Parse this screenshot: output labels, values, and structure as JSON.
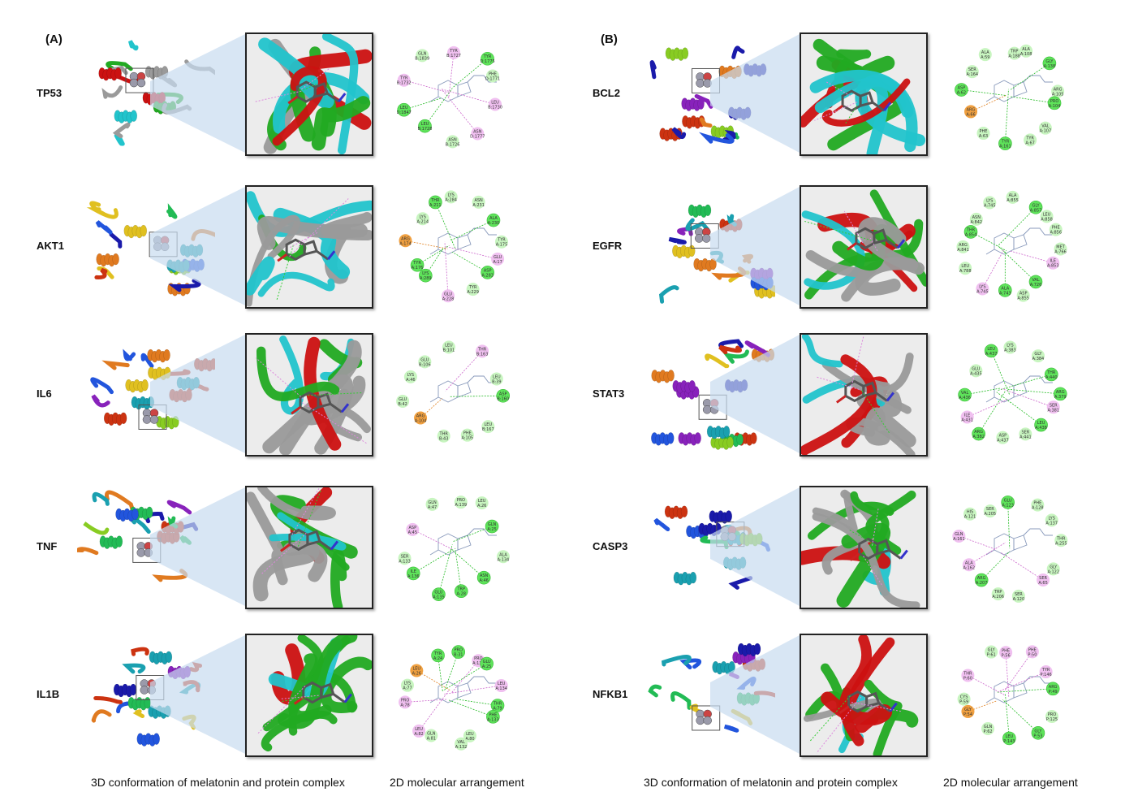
{
  "panels": [
    {
      "label": "(A)",
      "rows": [
        {
          "gene": "TP53",
          "residues": [
            "TYR B:1727",
            "TYR D:1775",
            "PHE D:1771",
            "LEU B:1730",
            "ASN D:1777",
            "ASN B:1726",
            "LEU B:1728",
            "LEU D:1847",
            "TYR B:1732",
            "GLN B:1839"
          ]
        },
        {
          "gene": "AKT1",
          "residues": [
            "LYS A:284",
            "ASN A:231",
            "ALA A:230",
            "TYR A:175",
            "GLU A:17",
            "ASP A:283",
            "TYR A:229",
            "GLU A:228",
            "LYS A:289",
            "TYR A:176",
            "ARG A:174",
            "LYS A:214",
            "THR A:211"
          ]
        },
        {
          "gene": "IL6",
          "residues": [
            "LEU B:101",
            "THR B:163",
            "LEU B:39",
            "ASP B:160",
            "LEU B:167",
            "PHE A:105",
            "THR B:43",
            "ARG A:104",
            "GLU B:42",
            "LYS A:46",
            "GLU B:106"
          ]
        },
        {
          "gene": "TNF",
          "residues": [
            "PRO A:139",
            "LEU A:26",
            "GLN A:25",
            "ALA A:134",
            "ASN A:46",
            "TRP A:28",
            "GLU A:135",
            "ILE A:136",
            "SER A:133",
            "ASP A:45",
            "GLN A:47"
          ]
        },
        {
          "gene": "IL1B",
          "residues": [
            "PRO B:31",
            "PRO A:131",
            "GLU A:25",
            "LEU A:134",
            "THR A:79",
            "PHE A:133",
            "LEU A:80",
            "VAL A:132",
            "GLN A:81",
            "LEU A:82",
            "PRO A:78",
            "LYS A:77",
            "LEU A:26",
            "TYR A:24"
          ]
        }
      ]
    },
    {
      "label": "(B)",
      "rows": [
        {
          "gene": "BCL2",
          "residues": [
            "TRP A:188",
            "ALA A:108",
            "GLY A:138",
            "ARG A:105",
            "PRO A:104",
            "VAL A:107",
            "TYR A:67",
            "TYR A:161",
            "PHE A:63",
            "ARG A:66",
            "ASP A:62",
            "SER A:164",
            "ALA A:59"
          ]
        },
        {
          "gene": "EGFR",
          "residues": [
            "ALA A:855",
            "GLY A:857",
            "LEU A:858",
            "PHE A:856",
            "MET A:766",
            "ILE A:853",
            "VAL A:726",
            "ASP A:855",
            "ALA A:743",
            "LYS A:745",
            "LEU A:788",
            "ARG A:841",
            "THR A:854",
            "ASN A:842",
            "LYS A:745"
          ]
        },
        {
          "gene": "STAT3",
          "residues": [
            "LYS A:383",
            "GLY A:384",
            "THR A:440",
            "ARG A:379",
            "SER A:381",
            "LEU A:438",
            "SER A:441",
            "ASP A:437",
            "ARG A:382",
            "ILE A:431",
            "VAL A:436",
            "GLU A:435",
            "LEU A:437"
          ]
        },
        {
          "gene": "CASP3",
          "residues": [
            "GLU A:123",
            "PHE A:128",
            "LYS A:137",
            "THR A:255",
            "GLY A:122",
            "SER A:65",
            "SER A:120",
            "TRP A:206",
            "ARG A:207",
            "ALA A:162",
            "GLN A:161",
            "HIS A:121",
            "SER A:205"
          ]
        },
        {
          "gene": "NFKB1",
          "residues": [
            "PHE P:56",
            "PHE P:50",
            "TYR P:146",
            "ARG P:49",
            "PRO P:125",
            "GLY P:53",
            "LEU P:143",
            "GLN P:62",
            "GLY P:54",
            "CYS P:59",
            "THR P:60",
            "GLY P:61"
          ]
        }
      ]
    }
  ],
  "captions": {
    "conformation": "3D conformation of melatonin and protein complex",
    "arrangement": "2D molecular arrangement"
  },
  "colors": {
    "helix": "#cc1111",
    "strand": "#22c4cc",
    "loop": "#9a9a9a",
    "turn": "#22aa22",
    "ligand": "#777777",
    "vdw": "#c8f5c0",
    "hbond": "#5ee35a",
    "pi_alkyl": "#f0c0f0",
    "pi_anion": "#f0a040",
    "callout": "#c8dcf0"
  }
}
